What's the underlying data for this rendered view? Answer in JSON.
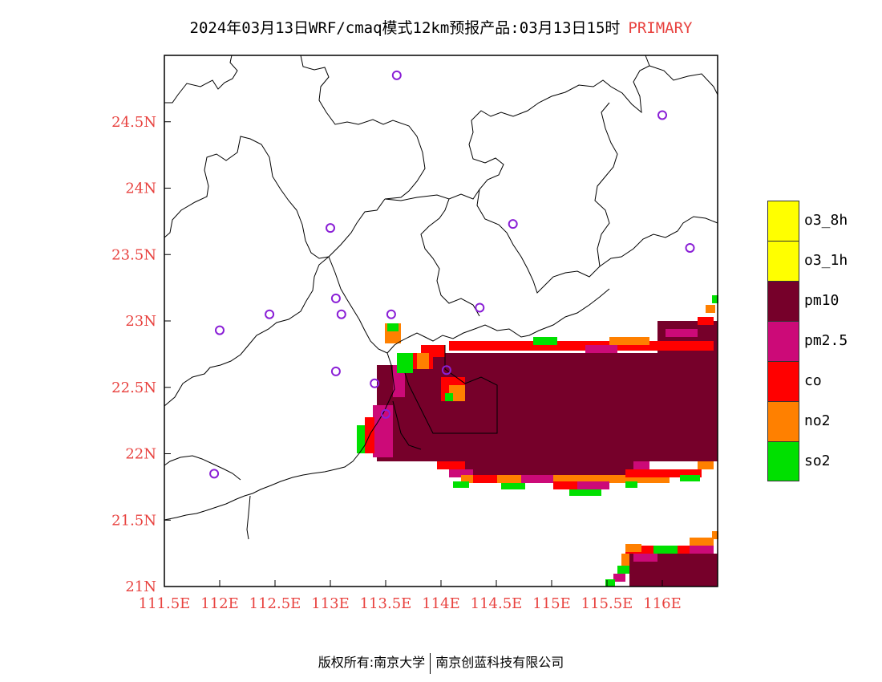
{
  "title": {
    "main": "2024年03月13日WRF/cmaq模式12km预报产品:03月13日15时",
    "tag": "PRIMARY"
  },
  "axes": {
    "x_ticks": [
      "111.5E",
      "112E",
      "112.5E",
      "113E",
      "113.5E",
      "114E",
      "114.5E",
      "115E",
      "115.5E",
      "116E"
    ],
    "x_values": [
      111.5,
      112,
      112.5,
      113,
      113.5,
      114,
      114.5,
      115,
      115.5,
      116
    ],
    "y_ticks": [
      "24.5N",
      "24N",
      "23.5N",
      "23N",
      "22.5N",
      "22N",
      "21.5N",
      "21N"
    ],
    "y_values": [
      24.5,
      24,
      23.5,
      23,
      22.5,
      22,
      21.5,
      21
    ],
    "lon_range": [
      111.5,
      116.5
    ],
    "lat_range": [
      21,
      25
    ],
    "tick_color": "#e8423f"
  },
  "legend": [
    {
      "label": "o3_8h",
      "color": "#ffff00"
    },
    {
      "label": "o3_1h",
      "color": "#ffff00"
    },
    {
      "label": "pm10",
      "color": "#76002a"
    },
    {
      "label": "pm2.5",
      "color": "#cc0a78"
    },
    {
      "label": "co",
      "color": "#ff0000"
    },
    {
      "label": "no2",
      "color": "#ff8000"
    },
    {
      "label": "so2",
      "color": "#00e000"
    }
  ],
  "stations": [
    [
      113.6,
      24.85
    ],
    [
      116.0,
      24.55
    ],
    [
      113.0,
      23.7
    ],
    [
      114.65,
      23.73
    ],
    [
      116.25,
      23.55
    ],
    [
      113.05,
      23.17
    ],
    [
      112.45,
      23.05
    ],
    [
      113.1,
      23.05
    ],
    [
      113.55,
      23.05
    ],
    [
      114.35,
      23.1
    ],
    [
      112.0,
      22.93
    ],
    [
      113.05,
      22.62
    ],
    [
      113.4,
      22.53
    ],
    [
      114.05,
      22.63
    ],
    [
      113.5,
      22.3
    ],
    [
      111.95,
      21.85
    ]
  ],
  "footer": {
    "left": "版权所有:南京大学",
    "right": "南京创蓝科技有限公司"
  }
}
